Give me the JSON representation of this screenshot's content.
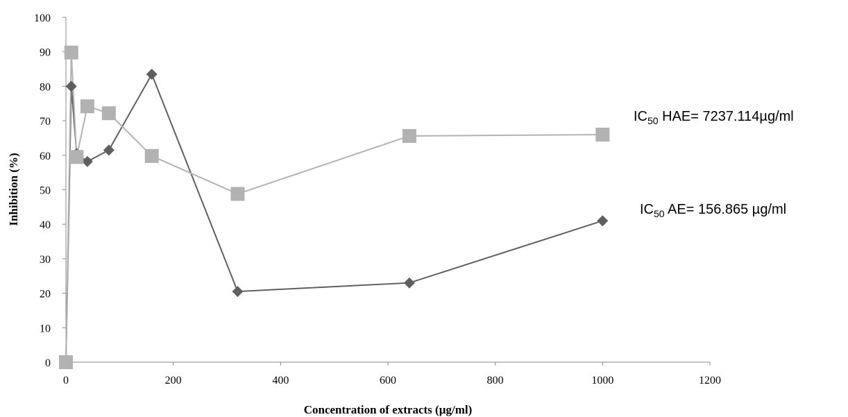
{
  "chart_data": {
    "type": "line",
    "title": "",
    "xlabel": "Concentration of extracts (µg/ml)",
    "ylabel": "Inhibition (%)",
    "xlim": [
      0,
      1200
    ],
    "ylim": [
      0,
      100
    ],
    "xticks": [
      0,
      200,
      400,
      600,
      800,
      1000,
      1200
    ],
    "yticks": [
      0,
      10,
      20,
      30,
      40,
      50,
      60,
      70,
      80,
      90,
      100
    ],
    "grid": false,
    "legend": "none",
    "series": [
      {
        "marker": "diamond",
        "color": "#5f5f5f",
        "x": [
          0,
          10,
          20,
          40,
          80,
          160,
          320,
          640,
          1000
        ],
        "y": [
          0,
          80,
          60.5,
          58.2,
          61.5,
          83.5,
          20.5,
          23,
          41
        ]
      },
      {
        "marker": "square",
        "color": "#b2b2b2",
        "x": [
          0,
          10,
          20,
          40,
          80,
          160,
          320,
          640,
          1000
        ],
        "y": [
          0,
          89.8,
          59.5,
          74.2,
          72.2,
          59.8,
          48.8,
          65.6,
          66
        ]
      }
    ],
    "annotations": [
      {
        "main": "IC",
        "sub": "50",
        "rest": " HAE= 7237.114µg/ml"
      },
      {
        "main": "IC",
        "sub": "50",
        "rest": " AE= 156.865 µg/ml"
      }
    ]
  }
}
